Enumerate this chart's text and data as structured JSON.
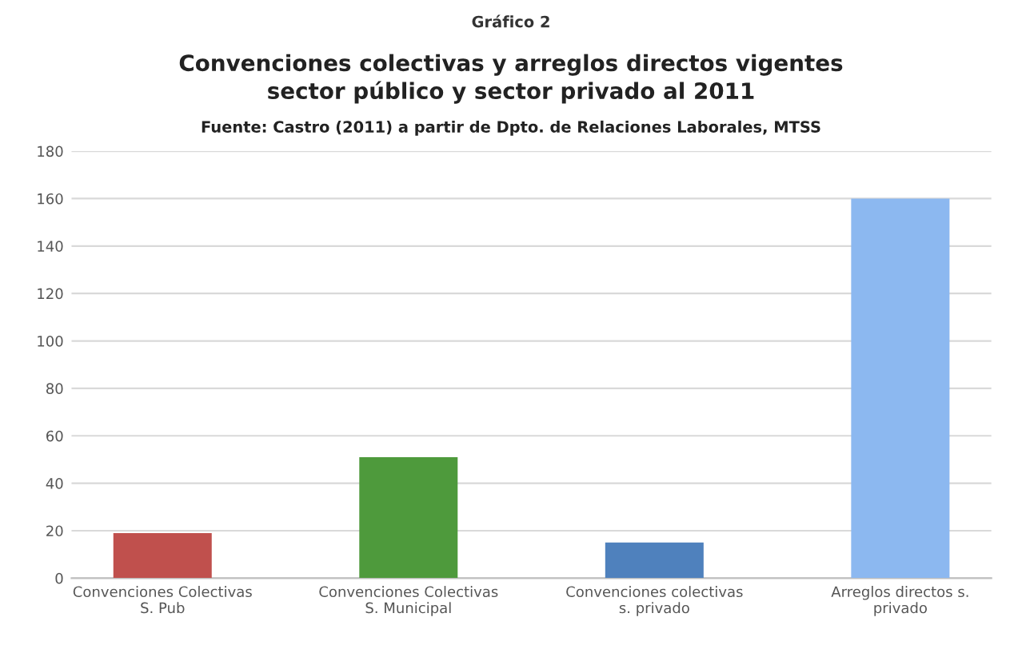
{
  "chart_data": {
    "type": "bar",
    "title": "Convenciones colectivas y arreglos directos vigentes\nsector público y sector privado al 2011",
    "annotations": [
      "Gráfico 2",
      "Fuente: Castro (2011) a partir de Dpto. de Relaciones Laborales, MTSS"
    ],
    "categories": [
      "Convenciones Colectivas\nS. Pub",
      "Convenciones Colectivas\nS. Municipal",
      "Convenciones colectivas\ns. privado",
      "Arreglos directos s.\nprivado"
    ],
    "values": [
      19,
      51,
      15,
      160
    ],
    "colors": [
      "#c0504d",
      "#4e9a3c",
      "#4f81bd",
      "#8cb8f0"
    ],
    "ylim": [
      0,
      180
    ],
    "yticks": [
      0,
      20,
      40,
      60,
      80,
      100,
      120,
      140,
      160,
      180
    ],
    "grid": "y"
  }
}
